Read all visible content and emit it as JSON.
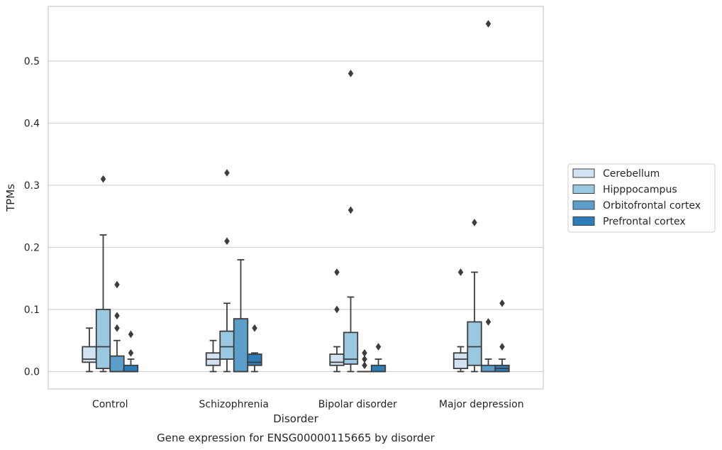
{
  "caption": "Gene expression for ENSG00000115665 by disorder",
  "chart_data": {
    "type": "box",
    "title": "",
    "xlabel": "Disorder",
    "ylabel": "TPMs",
    "ylim": [
      -0.028,
      0.588
    ],
    "yticks": [
      0.0,
      0.1,
      0.2,
      0.3,
      0.4,
      0.5
    ],
    "ytick_labels": [
      "0.0",
      "0.1",
      "0.2",
      "0.3",
      "0.4",
      "0.5"
    ],
    "grid": "horizontal",
    "legend_position": "right",
    "categories": [
      "Control",
      "Schizophrenia",
      "Bipolar disorder",
      "Major depression"
    ],
    "series": [
      {
        "name": "Cerebellum",
        "color": "#d1e2f2",
        "boxes": [
          {
            "whislo": 0.0,
            "q1": 0.015,
            "med": 0.02,
            "q3": 0.04,
            "whishi": 0.07,
            "fliers": []
          },
          {
            "whislo": 0.0,
            "q1": 0.01,
            "med": 0.02,
            "q3": 0.03,
            "whishi": 0.05,
            "fliers": []
          },
          {
            "whislo": 0.0,
            "q1": 0.01,
            "med": 0.015,
            "q3": 0.028,
            "whishi": 0.04,
            "fliers": [
              0.1,
              0.16
            ]
          },
          {
            "whislo": 0.0,
            "q1": 0.005,
            "med": 0.02,
            "q3": 0.03,
            "whishi": 0.04,
            "fliers": [
              0.16
            ]
          }
        ]
      },
      {
        "name": "Hipppocampus",
        "color": "#9ac8e0",
        "boxes": [
          {
            "whislo": 0.0,
            "q1": 0.005,
            "med": 0.04,
            "q3": 0.1,
            "whishi": 0.22,
            "fliers": [
              0.31
            ]
          },
          {
            "whislo": 0.0,
            "q1": 0.02,
            "med": 0.04,
            "q3": 0.065,
            "whishi": 0.11,
            "fliers": [
              0.21,
              0.32
            ]
          },
          {
            "whislo": 0.0,
            "q1": 0.012,
            "med": 0.02,
            "q3": 0.063,
            "whishi": 0.12,
            "fliers": [
              0.26,
              0.48
            ]
          },
          {
            "whislo": 0.0,
            "q1": 0.01,
            "med": 0.04,
            "q3": 0.08,
            "whishi": 0.16,
            "fliers": [
              0.24
            ]
          }
        ]
      },
      {
        "name": "Orbitofrontal cortex",
        "color": "#5a9ec9",
        "boxes": [
          {
            "whislo": 0.0,
            "q1": 0.0,
            "med": 0.0,
            "q3": 0.025,
            "whishi": 0.05,
            "fliers": [
              0.07,
              0.09,
              0.14
            ]
          },
          {
            "whislo": 0.0,
            "q1": 0.0,
            "med": 0.0,
            "q3": 0.085,
            "whishi": 0.18,
            "fliers": []
          },
          {
            "whislo": 0.0,
            "q1": 0.0,
            "med": 0.0,
            "q3": 0.0,
            "whishi": 0.0,
            "fliers": [
              0.01,
              0.02,
              0.03
            ]
          },
          {
            "whislo": 0.0,
            "q1": 0.0,
            "med": 0.0,
            "q3": 0.01,
            "whishi": 0.02,
            "fliers": [
              0.08,
              0.56
            ]
          }
        ]
      },
      {
        "name": "Prefrontal cortex",
        "color": "#2d7dbb",
        "boxes": [
          {
            "whislo": 0.0,
            "q1": 0.0,
            "med": 0.0,
            "q3": 0.01,
            "whishi": 0.02,
            "fliers": [
              0.03,
              0.06
            ]
          },
          {
            "whislo": 0.0,
            "q1": 0.01,
            "med": 0.015,
            "q3": 0.028,
            "whishi": 0.03,
            "fliers": [
              0.07
            ]
          },
          {
            "whislo": 0.0,
            "q1": 0.0,
            "med": 0.0,
            "q3": 0.01,
            "whishi": 0.02,
            "fliers": [
              0.04
            ]
          },
          {
            "whislo": 0.0,
            "q1": 0.0,
            "med": 0.005,
            "q3": 0.01,
            "whishi": 0.02,
            "fliers": [
              0.04,
              0.11
            ]
          }
        ]
      }
    ]
  }
}
